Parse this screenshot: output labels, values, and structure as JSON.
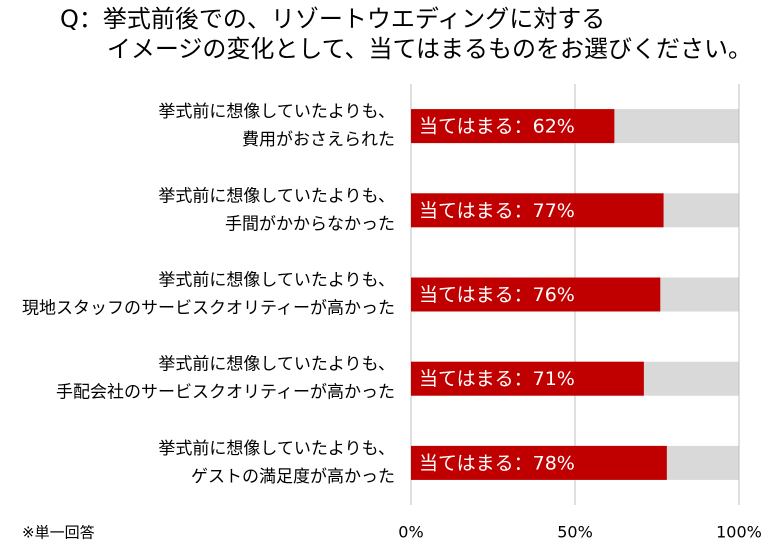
{
  "chart_data": {
    "type": "bar",
    "title": [
      "Q：挙式前後での、リゾートウエディングに対する",
      "イメージの変化として、当てはまるものをお選びください。"
    ],
    "categories": [
      [
        "挙式前に想像していたよりも、",
        "費用がおさえられた"
      ],
      [
        "挙式前に想像していたよりも、",
        "手間がかからなかった"
      ],
      [
        "挙式前に想像していたよりも、",
        "現地スタッフのサービスクオリティーが高かった"
      ],
      [
        "挙式前に想像していたよりも、",
        "手配会社のサービスクオリティーが高かった"
      ],
      [
        "挙式前に想像していたよりも、",
        "ゲストの満足度が高かった"
      ]
    ],
    "values": [
      62,
      77,
      76,
      71,
      78
    ],
    "value_labels": [
      "当てはまる：62%",
      "当てはまる：77%",
      "当てはまる：76%",
      "当てはまる：71%",
      "当てはまる：78%"
    ],
    "color": "#c00000",
    "track_color": "#d9d9d9",
    "xlim": [
      0,
      100
    ],
    "xticks": [
      {
        "value": 0,
        "label": "0%"
      },
      {
        "value": 50,
        "label": "50%"
      },
      {
        "value": 100,
        "label": "100%"
      }
    ],
    "grid": true,
    "note": "※単一回答"
  }
}
